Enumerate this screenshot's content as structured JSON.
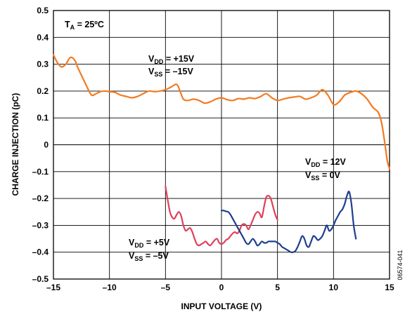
{
  "chart_data": {
    "type": "line",
    "xlabel": "INPUT VOLTAGE (V)",
    "ylabel": "CHARGE INJECTION (pC)",
    "xlim": [
      -15,
      15
    ],
    "ylim": [
      -0.5,
      0.5
    ],
    "x_ticks": [
      -15,
      -10,
      -5,
      0,
      5,
      10,
      15
    ],
    "x_tick_labels": [
      "–15",
      "–10",
      "–5",
      "0",
      "5",
      "10",
      "15"
    ],
    "y_ticks": [
      0.5,
      0.4,
      0.3,
      0.2,
      0.1,
      0,
      -0.1,
      -0.2,
      -0.3,
      -0.4,
      -0.5
    ],
    "y_tick_labels": [
      "0.5",
      "0.4",
      "0.3",
      "0.2",
      "0.1",
      "0",
      "–0.1",
      "–0.2",
      "–0.3",
      "–0.4",
      "–0.5"
    ],
    "grid": true,
    "figure_id": "06574-041",
    "annotations": {
      "ta": {
        "main": "T",
        "sub": "A",
        "rest": " = 25ºC"
      },
      "a15_vdd": {
        "main": "V",
        "sub": "DD",
        "rest": " = +15V"
      },
      "a15_vss": {
        "main": "V",
        "sub": "SS",
        "rest": " = –15V"
      },
      "a12_vdd": {
        "main": "V",
        "sub": "DD",
        "rest": " = 12V"
      },
      "a12_vss": {
        "main": "V",
        "sub": "SS",
        "rest": " = 0V"
      },
      "a5_vdd": {
        "main": "V",
        "sub": "DD",
        "rest": " = +5V"
      },
      "a5_vss": {
        "main": "V",
        "sub": "SS",
        "rest": " = –5V"
      }
    },
    "series": [
      {
        "color": "#f47a20",
        "x": [
          -15,
          -14.7,
          -14.3,
          -13.9,
          -13.5,
          -13.1,
          -12.8,
          -12.4,
          -12,
          -11.6,
          -11.2,
          -10.8,
          -10.4,
          -10,
          -9.5,
          -9,
          -8.5,
          -8,
          -7.5,
          -7,
          -6.5,
          -6,
          -5.5,
          -5,
          -4.5,
          -4,
          -3.7,
          -3.4,
          -3,
          -2.5,
          -2,
          -1.5,
          -1,
          -0.5,
          0,
          0.5,
          1,
          1.5,
          2,
          2.5,
          3,
          3.5,
          4,
          4.5,
          5,
          5.5,
          6,
          6.5,
          7,
          7.5,
          8,
          8.5,
          9,
          9.5,
          10,
          10.5,
          11,
          11.5,
          12,
          12.5,
          13,
          13.5,
          14,
          14.3,
          14.6,
          14.8,
          15
        ],
        "y": [
          0.335,
          0.31,
          0.29,
          0.3,
          0.325,
          0.315,
          0.285,
          0.25,
          0.215,
          0.185,
          0.19,
          0.198,
          0.2,
          0.198,
          0.195,
          0.185,
          0.18,
          0.175,
          0.18,
          0.19,
          0.2,
          0.198,
          0.2,
          0.205,
          0.215,
          0.225,
          0.2,
          0.17,
          0.165,
          0.17,
          0.165,
          0.155,
          0.16,
          0.17,
          0.175,
          0.168,
          0.165,
          0.172,
          0.17,
          0.175,
          0.172,
          0.18,
          0.19,
          0.175,
          0.165,
          0.17,
          0.175,
          0.178,
          0.18,
          0.17,
          0.175,
          0.185,
          0.205,
          0.185,
          0.15,
          0.16,
          0.185,
          0.195,
          0.2,
          0.19,
          0.17,
          0.14,
          0.12,
          0.08,
          0.0,
          -0.06,
          -0.09
        ]
      },
      {
        "color": "#e0405a",
        "x": [
          -5,
          -4.8,
          -4.6,
          -4.4,
          -4.2,
          -4,
          -3.8,
          -3.6,
          -3.4,
          -3.2,
          -3,
          -2.8,
          -2.6,
          -2.4,
          -2.2,
          -2,
          -1.8,
          -1.6,
          -1.4,
          -1.2,
          -1,
          -0.8,
          -0.6,
          -0.4,
          -0.2,
          0,
          0.2,
          0.4,
          0.6,
          0.8,
          1,
          1.2,
          1.4,
          1.6,
          1.8,
          2,
          2.2,
          2.4,
          2.6,
          2.8,
          3,
          3.2,
          3.4,
          3.6,
          3.8,
          4,
          4.2,
          4.4,
          4.6,
          4.8,
          5
        ],
        "y": [
          -0.155,
          -0.205,
          -0.25,
          -0.27,
          -0.275,
          -0.26,
          -0.25,
          -0.265,
          -0.3,
          -0.32,
          -0.315,
          -0.31,
          -0.325,
          -0.35,
          -0.37,
          -0.375,
          -0.37,
          -0.365,
          -0.36,
          -0.37,
          -0.375,
          -0.365,
          -0.355,
          -0.35,
          -0.365,
          -0.37,
          -0.365,
          -0.355,
          -0.35,
          -0.34,
          -0.33,
          -0.325,
          -0.33,
          -0.32,
          -0.3,
          -0.295,
          -0.3,
          -0.315,
          -0.3,
          -0.28,
          -0.26,
          -0.25,
          -0.255,
          -0.27,
          -0.23,
          -0.195,
          -0.19,
          -0.2,
          -0.23,
          -0.26,
          -0.28
        ]
      },
      {
        "color": "#1e3f8f",
        "x": [
          0,
          0.2,
          0.4,
          0.6,
          0.8,
          1,
          1.2,
          1.4,
          1.6,
          1.8,
          2,
          2.2,
          2.4,
          2.6,
          2.8,
          3,
          3.2,
          3.4,
          3.6,
          3.8,
          4,
          4.2,
          4.4,
          4.6,
          4.8,
          5,
          5.2,
          5.4,
          5.6,
          5.8,
          6,
          6.2,
          6.4,
          6.6,
          6.8,
          7,
          7.2,
          7.4,
          7.6,
          7.8,
          8,
          8.2,
          8.4,
          8.6,
          8.8,
          9,
          9.2,
          9.4,
          9.6,
          9.8,
          10,
          10.2,
          10.4,
          10.6,
          10.8,
          11,
          11.2,
          11.4,
          11.6,
          11.8,
          12
        ],
        "y": [
          -0.245,
          -0.245,
          -0.248,
          -0.25,
          -0.26,
          -0.275,
          -0.29,
          -0.305,
          -0.32,
          -0.335,
          -0.35,
          -0.365,
          -0.37,
          -0.36,
          -0.35,
          -0.36,
          -0.375,
          -0.37,
          -0.36,
          -0.365,
          -0.365,
          -0.36,
          -0.36,
          -0.36,
          -0.36,
          -0.365,
          -0.37,
          -0.38,
          -0.385,
          -0.39,
          -0.395,
          -0.4,
          -0.4,
          -0.395,
          -0.38,
          -0.36,
          -0.34,
          -0.35,
          -0.375,
          -0.38,
          -0.36,
          -0.34,
          -0.345,
          -0.355,
          -0.35,
          -0.34,
          -0.32,
          -0.3,
          -0.32,
          -0.315,
          -0.3,
          -0.28,
          -0.265,
          -0.25,
          -0.24,
          -0.22,
          -0.19,
          -0.175,
          -0.22,
          -0.3,
          -0.35
        ]
      }
    ]
  }
}
